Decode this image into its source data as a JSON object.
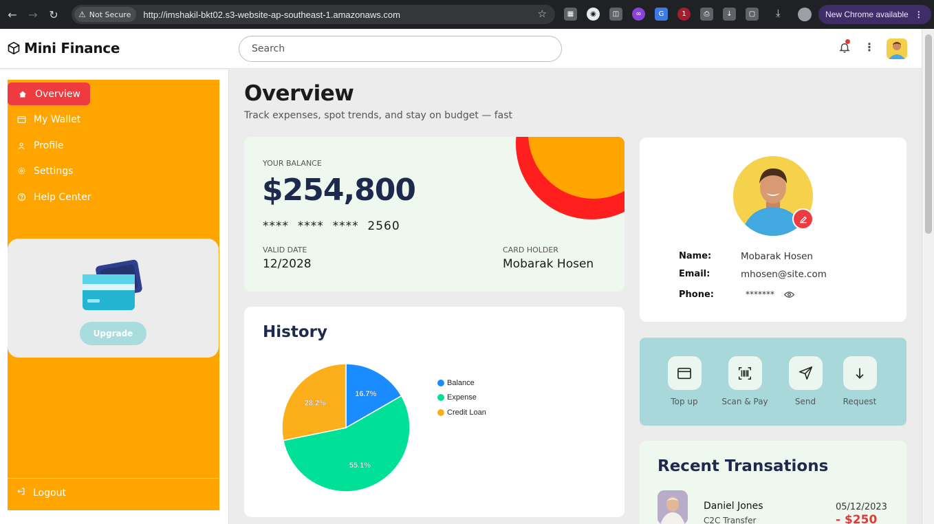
{
  "browser": {
    "secure_label": "Not Secure",
    "url": "http://imshakil-bkt02.s3-website-ap-southeast-1.amazonaws.com",
    "update_label": "New Chrome available",
    "extension_badge": "1"
  },
  "header": {
    "brand": "Mini Finance",
    "search_placeholder": "Search"
  },
  "sidebar": {
    "items": [
      {
        "label": "Overview",
        "icon": "home-icon",
        "active": true
      },
      {
        "label": "My Wallet",
        "icon": "wallet-icon",
        "active": false
      },
      {
        "label": "Profile",
        "icon": "user-icon",
        "active": false
      },
      {
        "label": "Settings",
        "icon": "gear-icon",
        "active": false
      },
      {
        "label": "Help Center",
        "icon": "help-icon",
        "active": false
      }
    ],
    "upgrade_label": "Upgrade",
    "logout_label": "Logout"
  },
  "main": {
    "title": "Overview",
    "subtitle": "Track expenses, spot trends, and stay on budget — fast"
  },
  "balance": {
    "label": "YOUR BALANCE",
    "amount": "$254,800",
    "card_number": "****  ****  ****  2560",
    "valid_label": "VALID DATE",
    "valid_value": "12/2028",
    "holder_label": "CARD HOLDER",
    "holder_value": "Mobarak Hosen"
  },
  "history": {
    "title": "History"
  },
  "chart_data": {
    "type": "pie",
    "title": "History",
    "categories": [
      "Balance",
      "Expense",
      "Credit Loan"
    ],
    "values": [
      16.7,
      55.1,
      28.2
    ],
    "labels": [
      "16.7%",
      "55.1%",
      "28.2%"
    ],
    "colors": [
      "#1a8cff",
      "#00e096",
      "#fdae1b"
    ],
    "legend_position": "right"
  },
  "profile": {
    "name_label": "Name:",
    "name_value": "Mobarak Hosen",
    "email_label": "Email:",
    "email_value": "mhosen@site.com",
    "phone_label": "Phone:",
    "phone_value": "*******"
  },
  "actions": [
    {
      "label": "Top up",
      "icon": "wallet-icon"
    },
    {
      "label": "Scan & Pay",
      "icon": "barcode-icon"
    },
    {
      "label": "Send",
      "icon": "send-icon"
    },
    {
      "label": "Request",
      "icon": "arrow-down-icon"
    }
  ],
  "transactions": {
    "title": "Recent Transations",
    "items": [
      {
        "name": "Daniel Jones",
        "type": "C2C Transfer",
        "date": "05/12/2023",
        "amount": "- $250"
      }
    ]
  }
}
